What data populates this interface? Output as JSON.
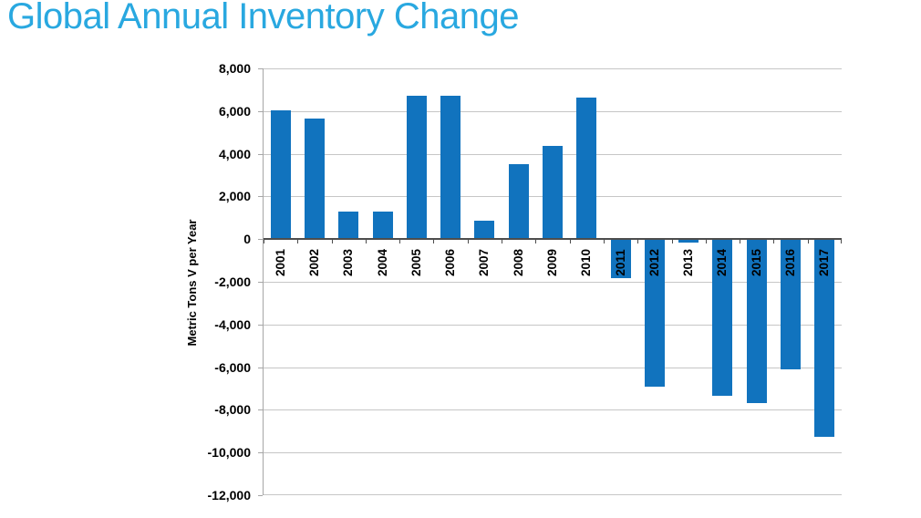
{
  "title": {
    "text": "Global Annual Inventory Change",
    "color": "#29A8E0"
  },
  "chart_data": {
    "type": "bar",
    "title": "Global Annual Inventory Change",
    "xlabel": "",
    "ylabel": "Metric Tons V per Year",
    "categories": [
      "2001",
      "2002",
      "2003",
      "2004",
      "2005",
      "2006",
      "2007",
      "2008",
      "2009",
      "2010",
      "2011",
      "2012",
      "2013",
      "2014",
      "2015",
      "2016",
      "2017"
    ],
    "values": [
      6050,
      5650,
      1300,
      1300,
      6700,
      6700,
      880,
      3500,
      4350,
      6650,
      -1850,
      -6900,
      -150,
      -7350,
      -7700,
      -6100,
      -9250
    ],
    "ylim": [
      -12000,
      8000
    ],
    "ytick_step": 2000,
    "yticks": [
      {
        "value": 8000,
        "label": "8,000"
      },
      {
        "value": 6000,
        "label": "6,000"
      },
      {
        "value": 4000,
        "label": "4,000"
      },
      {
        "value": 2000,
        "label": "2,000"
      },
      {
        "value": 0,
        "label": "0"
      },
      {
        "value": -2000,
        "label": "-2,000"
      },
      {
        "value": -4000,
        "label": "-4,000"
      },
      {
        "value": -6000,
        "label": "-6,000"
      },
      {
        "value": -8000,
        "label": "-8,000"
      },
      {
        "value": -10000,
        "label": "-10,000"
      },
      {
        "value": -12000,
        "label": "-12,000"
      }
    ],
    "grid": true,
    "legend": false,
    "colors": {
      "bar": "#1173BE",
      "title": "#29A8E0",
      "gridline": "#C6C6C6",
      "axis_line": "#A6A6A6",
      "zero_line": "#4D4D4D",
      "tick_label": "#000000",
      "background": "#FFFFFF"
    }
  }
}
